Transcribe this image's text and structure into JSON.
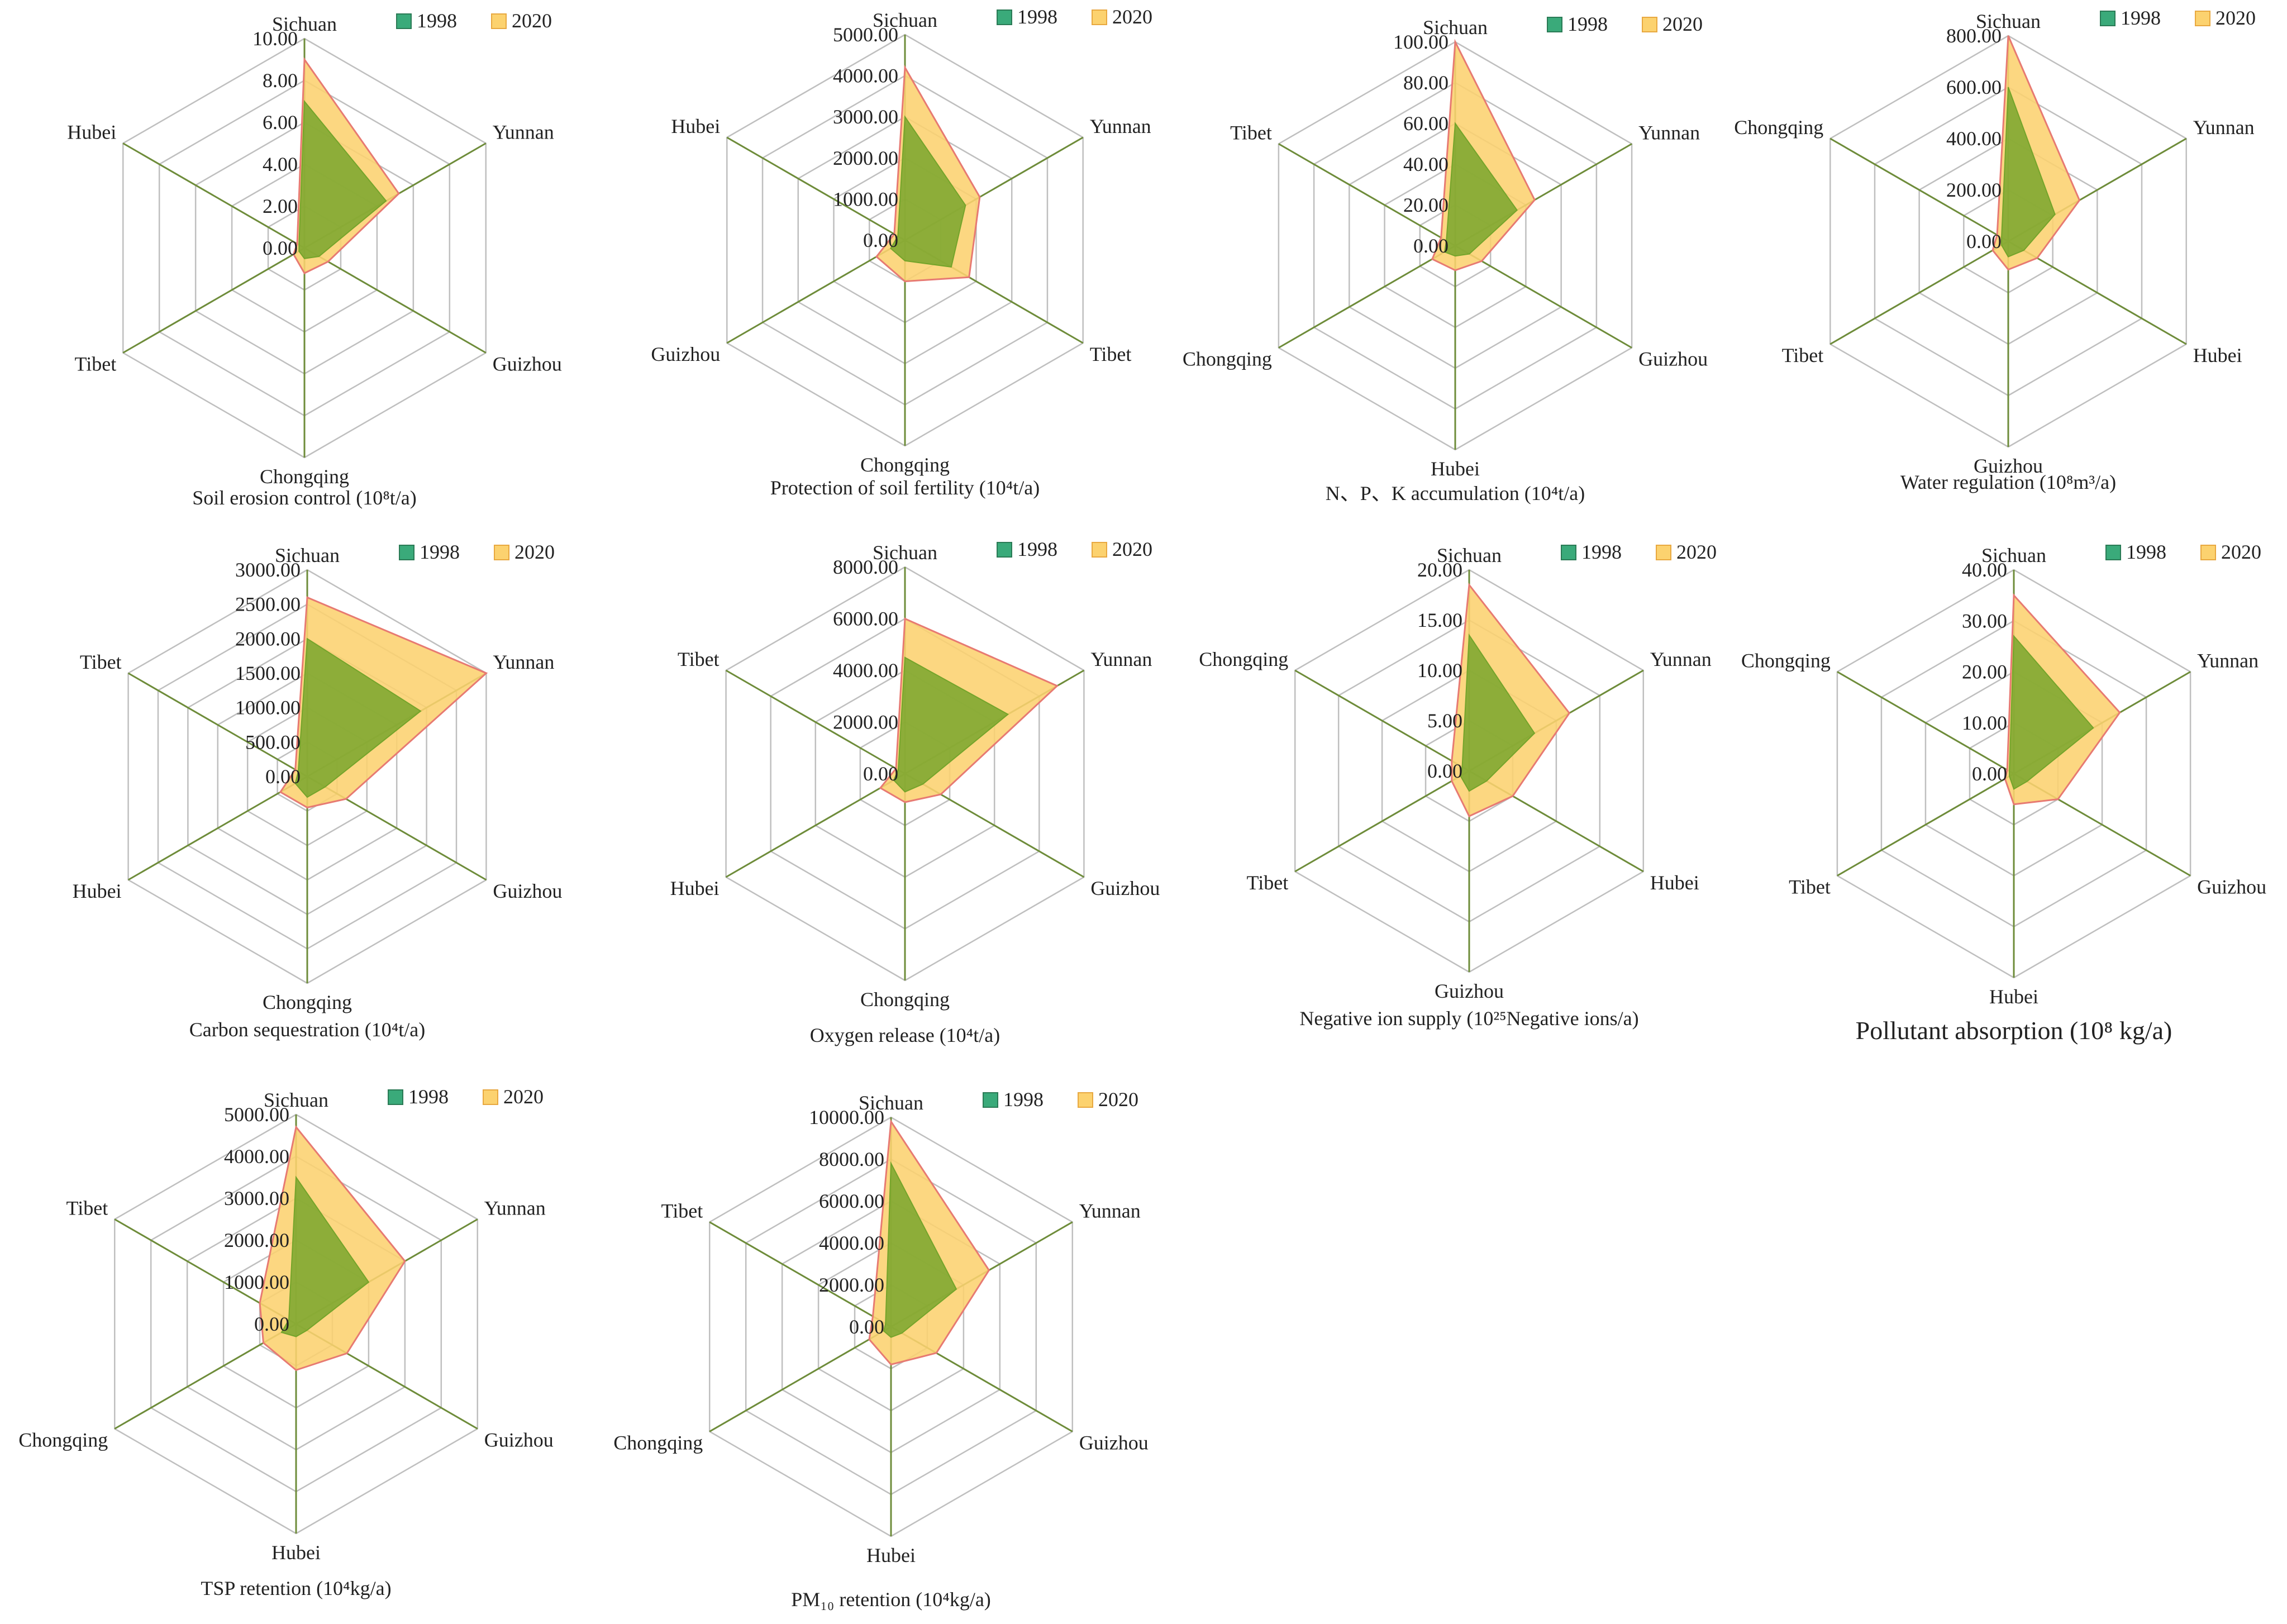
{
  "colors": {
    "series_1998": "#74a42a",
    "series_2020": "#fcd26f",
    "series_2020_stroke": "#e77a72",
    "legend_1998": "#3aaa7a",
    "legend_2020": "#fcd26f",
    "grid": "#bfbfbf",
    "spoke": "#6e8c3a"
  },
  "chart_data": [
    {
      "type": "radar",
      "title": "Soil erosion control (10⁸t/a)",
      "axes": [
        "Sichuan",
        "Yunnan",
        "Guizhou",
        "Chongqing",
        "Tibet",
        "Hubei"
      ],
      "ticks": [
        "0.00",
        "2.00",
        "4.00",
        "6.00",
        "8.00",
        "10.00"
      ],
      "range": [
        0,
        10
      ],
      "legend": [
        "1998",
        "2020"
      ],
      "series": [
        {
          "name": "1998",
          "values": [
            7.0,
            4.5,
            0.8,
            0.5,
            0.3,
            0.3
          ]
        },
        {
          "name": "2020",
          "values": [
            9.0,
            5.2,
            1.3,
            1.2,
            0.6,
            0.4
          ]
        }
      ]
    },
    {
      "type": "radar",
      "title": "Protection of soil fertility (10⁴t/a)",
      "axes": [
        "Sichuan",
        "Yunnan",
        "Tibet",
        "Chongqing",
        "Guizhou",
        "Hubei"
      ],
      "ticks": [
        "0.00",
        "1000.00",
        "2000.00",
        "3000.00",
        "4000.00",
        "5000.00"
      ],
      "range": [
        0,
        5000
      ],
      "legend": [
        "1998",
        "2020"
      ],
      "series": [
        {
          "name": "1998",
          "values": [
            3000,
            1700,
            1300,
            500,
            400,
            200
          ]
        },
        {
          "name": "2020",
          "values": [
            4200,
            2100,
            1800,
            1000,
            800,
            300
          ]
        }
      ]
    },
    {
      "type": "radar",
      "title": "N、P、K accumulation (10⁴t/a)",
      "axes": [
        "Sichuan",
        "Yunnan",
        "Guizhou",
        "Hubei",
        "Chongqing",
        "Tibet"
      ],
      "ticks": [
        "0.00",
        "20.00",
        "40.00",
        "60.00",
        "80.00",
        "100.00"
      ],
      "range": [
        0,
        100
      ],
      "legend": [
        "1998",
        "2020"
      ],
      "series": [
        {
          "name": "1998",
          "values": [
            60,
            35,
            8,
            5,
            6,
            5
          ]
        },
        {
          "name": "2020",
          "values": [
            100,
            45,
            15,
            12,
            13,
            8
          ]
        }
      ]
    },
    {
      "type": "radar",
      "title": "Water regulation (10⁸m³/a)",
      "axes": [
        "Sichuan",
        "Yunnan",
        "Hubei",
        "Guizhou",
        "Tibet",
        "Chongqing"
      ],
      "ticks": [
        "0.00",
        "200.00",
        "400.00",
        "600.00",
        "800.00"
      ],
      "range": [
        0,
        800
      ],
      "legend": [
        "1998",
        "2020"
      ],
      "series": [
        {
          "name": "1998",
          "values": [
            600,
            210,
            70,
            60,
            30,
            30
          ]
        },
        {
          "name": "2020",
          "values": [
            800,
            320,
            130,
            110,
            70,
            50
          ]
        }
      ]
    },
    {
      "type": "radar",
      "title": "Carbon sequestration (10⁴t/a)",
      "axes": [
        "Sichuan",
        "Yunnan",
        "Guizhou",
        "Chongqing",
        "Hubei",
        "Tibet"
      ],
      "ticks": [
        "0.00",
        "500.00",
        "1000.00",
        "1500.00",
        "2000.00",
        "2500.00",
        "3000.00"
      ],
      "range": [
        0,
        3000
      ],
      "legend": [
        "1998",
        "2020"
      ],
      "series": [
        {
          "name": "1998",
          "values": [
            2000,
            1900,
            300,
            300,
            200,
            150
          ]
        },
        {
          "name": "2020",
          "values": [
            2600,
            3000,
            650,
            450,
            450,
            200
          ]
        }
      ]
    },
    {
      "type": "radar",
      "title": "Oxygen release (10⁴t/a)",
      "axes": [
        "Sichuan",
        "Yunnan",
        "Guizhou",
        "Chongqing",
        "Hubei",
        "Tibet"
      ],
      "ticks": [
        "0.00",
        "2000.00",
        "4000.00",
        "6000.00",
        "8000.00"
      ],
      "range": [
        0,
        8000
      ],
      "legend": [
        "1998",
        "2020"
      ],
      "series": [
        {
          "name": "1998",
          "values": [
            4500,
            4600,
            800,
            700,
            500,
            300
          ]
        },
        {
          "name": "2020",
          "values": [
            6000,
            6800,
            1600,
            1100,
            1100,
            400
          ]
        }
      ]
    },
    {
      "type": "radar",
      "title": "Negative ion supply (10²⁵Negative ions/a)",
      "axes": [
        "Sichuan",
        "Yunnan",
        "Hubei",
        "Guizhou",
        "Tibet",
        "Chongqing"
      ],
      "ticks": [
        "0.00",
        "5.00",
        "10.00",
        "15.00",
        "20.00"
      ],
      "range": [
        0,
        20
      ],
      "legend": [
        "1998",
        "2020"
      ],
      "series": [
        {
          "name": "1998",
          "values": [
            13.5,
            7.5,
            2.0,
            2.0,
            1.0,
            0.8
          ]
        },
        {
          "name": "2020",
          "values": [
            18.5,
            11.5,
            5.0,
            4.5,
            2.0,
            2.0
          ]
        }
      ]
    },
    {
      "type": "radar",
      "title": "Pollutant absorption (10⁸ kg/a)",
      "axes": [
        "Sichuan",
        "Yunnan",
        "Guizhou",
        "Hubei",
        "Tibet",
        "Chongqing"
      ],
      "ticks": [
        "0.00",
        "10.00",
        "20.00",
        "30.00",
        "40.00"
      ],
      "range": [
        0,
        40
      ],
      "legend": [
        "1998",
        "2020"
      ],
      "series": [
        {
          "name": "1998",
          "values": [
            27,
            18,
            3,
            3,
            1,
            1
          ]
        },
        {
          "name": "2020",
          "values": [
            35,
            24,
            10,
            6,
            2,
            1.5
          ]
        }
      ]
    },
    {
      "type": "radar",
      "title": "TSP retention (10⁴kg/a)",
      "axes": [
        "Sichuan",
        "Yunnan",
        "Guizhou",
        "Hubei",
        "Chongqing",
        "Tibet"
      ],
      "ticks": [
        "0.00",
        "1000.00",
        "2000.00",
        "3000.00",
        "4000.00",
        "5000.00"
      ],
      "range": [
        0,
        5000
      ],
      "legend": [
        "1998",
        "2020"
      ],
      "series": [
        {
          "name": "1998",
          "values": [
            3500,
            2000,
            300,
            300,
            400,
            200
          ]
        },
        {
          "name": "2020",
          "values": [
            4700,
            3000,
            1400,
            1100,
            900,
            1000
          ]
        }
      ]
    },
    {
      "type": "radar",
      "title": "PM₁₀ retention (10⁴kg/a)",
      "axes": [
        "Sichuan",
        "Yunnan",
        "Guizhou",
        "Hubei",
        "Chongqing",
        "Tibet"
      ],
      "ticks": [
        "0.00",
        "2000.00",
        "4000.00",
        "6000.00",
        "8000.00",
        "10000.00"
      ],
      "range": [
        0,
        10000
      ],
      "legend": [
        "1998",
        "2020"
      ],
      "series": [
        {
          "name": "1998",
          "values": [
            7800,
            3600,
            600,
            500,
            400,
            300
          ]
        },
        {
          "name": "2020",
          "values": [
            9800,
            5400,
            2500,
            1800,
            1200,
            1000
          ]
        }
      ]
    }
  ]
}
